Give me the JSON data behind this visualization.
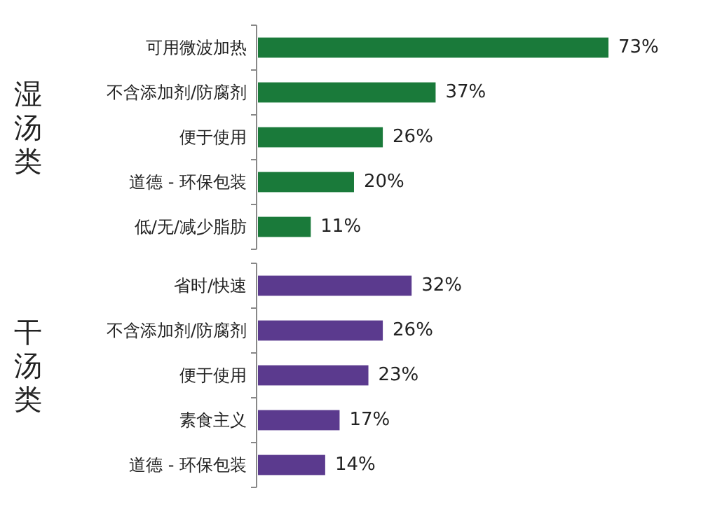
{
  "chart_data": [
    {
      "type": "bar",
      "orientation": "horizontal",
      "ylabel": "湿汤类",
      "data_labels": true,
      "categories": [
        "可用微波加热",
        "不含添加剂/防腐剂",
        "便于使用",
        "道德 - 环保包装",
        "低/无/减少脂肪"
      ],
      "series": [
        {
          "color": "#1a7a3a",
          "values": [
            73,
            37,
            26,
            20,
            11
          ],
          "value_labels": [
            "73%",
            "37%",
            "26%",
            "20%",
            "11%"
          ]
        }
      ]
    },
    {
      "type": "bar",
      "orientation": "horizontal",
      "ylabel": "干汤类",
      "data_labels": true,
      "categories": [
        "省时/快速",
        "不含添加剂/防腐剂",
        "便于使用",
        "素食主义",
        "道德 - 环保包装"
      ],
      "series": [
        {
          "color": "#5b3a8e",
          "values": [
            32,
            26,
            23,
            17,
            14
          ],
          "value_labels": [
            "32%",
            "26%",
            "23%",
            "17%",
            "14%"
          ]
        }
      ]
    }
  ]
}
